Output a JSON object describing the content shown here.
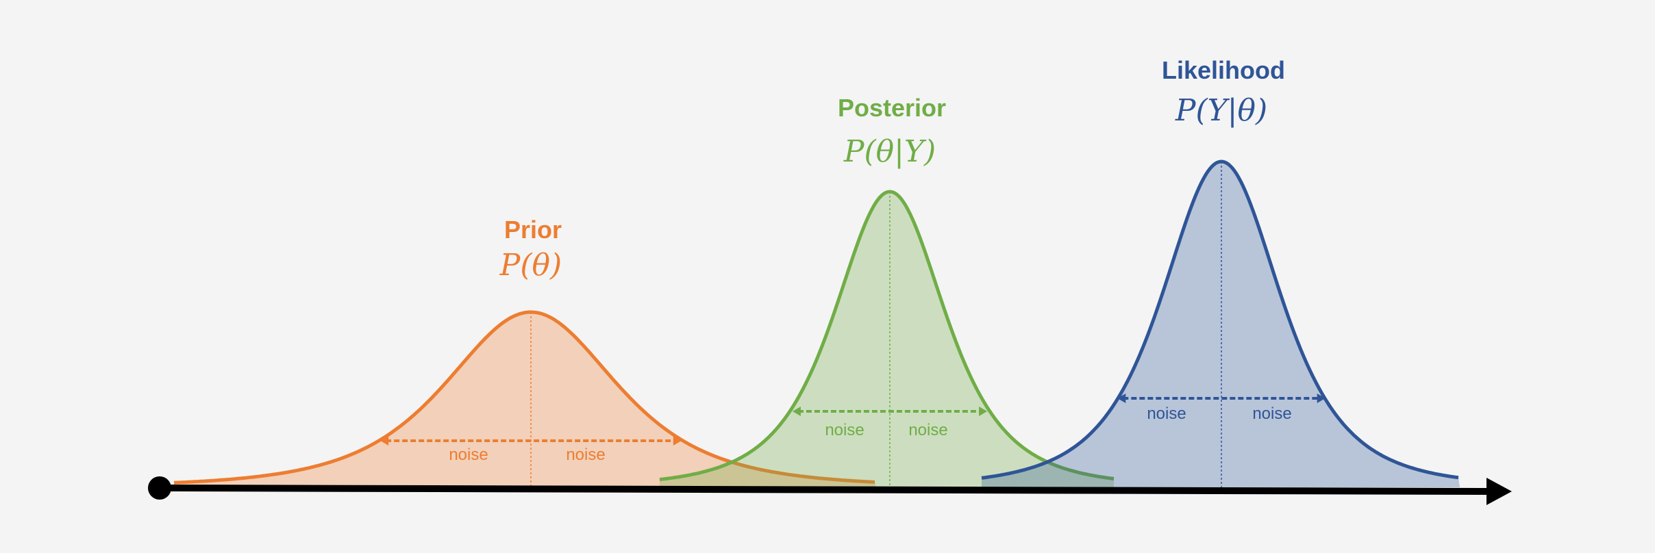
{
  "colors": {
    "background": "#F4F4F4",
    "prior": "#ED7D31",
    "posterior": "#70AD47",
    "likelihood": "#2F5597",
    "axis": "#000000"
  },
  "distributions": [
    {
      "key": "prior",
      "title": "Prior",
      "formula": "P(θ)",
      "noise_left": "noise",
      "noise_right": "noise"
    },
    {
      "key": "posterior",
      "title": "Posterior",
      "formula": "P(θ|Y)",
      "noise_left": "noise",
      "noise_right": "noise"
    },
    {
      "key": "likelihood",
      "title": "Likelihood",
      "formula": "P(Y|θ)",
      "noise_left": "noise",
      "noise_right": "noise"
    }
  ]
}
